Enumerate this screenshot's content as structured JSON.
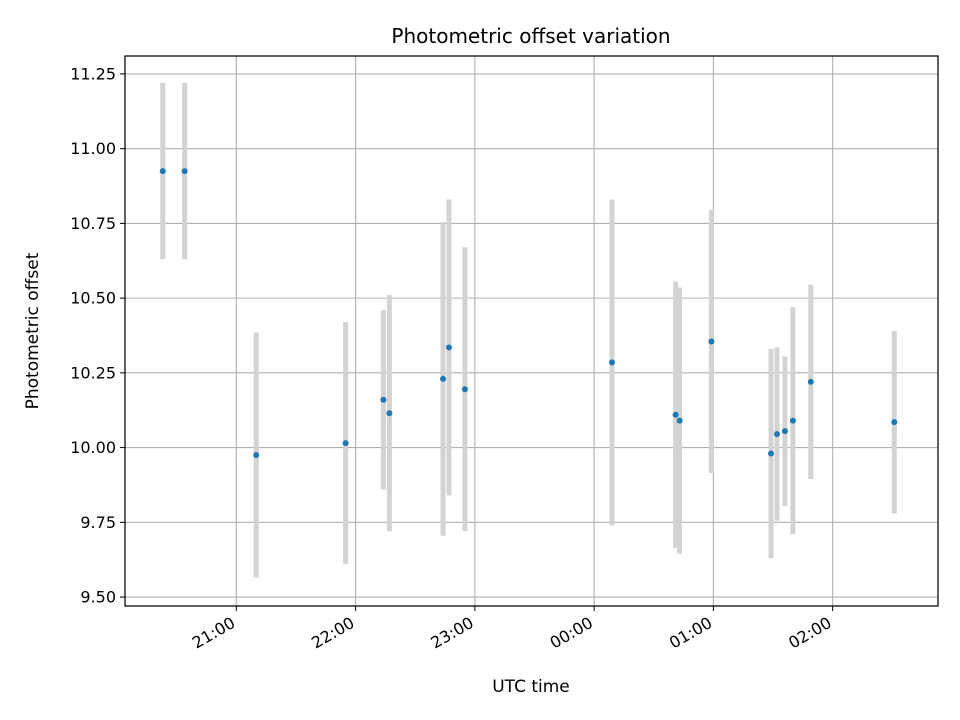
{
  "chart_data": {
    "type": "scatter",
    "title": "Photometric offset variation",
    "xlabel": "UTC time",
    "ylabel": "Photometric offset",
    "x_axis": {
      "type": "time",
      "range": [
        "2000-01-01T20:04:00",
        "2000-01-02T02:53:00"
      ],
      "ticks": [
        {
          "label": "21:00",
          "time": "2000-01-01T21:00:00"
        },
        {
          "label": "22:00",
          "time": "2000-01-01T22:00:00"
        },
        {
          "label": "23:00",
          "time": "2000-01-01T23:00:00"
        },
        {
          "label": "00:00",
          "time": "2000-01-02T00:00:00"
        },
        {
          "label": "01:00",
          "time": "2000-01-02T01:00:00"
        },
        {
          "label": "02:00",
          "time": "2000-01-02T02:00:00"
        }
      ]
    },
    "ylim": [
      9.47,
      11.31
    ],
    "y_ticks": [
      {
        "label": "9.50",
        "value": 9.5
      },
      {
        "label": "9.75",
        "value": 9.75
      },
      {
        "label": "10.00",
        "value": 10.0
      },
      {
        "label": "10.25",
        "value": 10.25
      },
      {
        "label": "10.50",
        "value": 10.5
      },
      {
        "label": "10.75",
        "value": 10.75
      },
      {
        "label": "11.00",
        "value": 11.0
      },
      {
        "label": "11.25",
        "value": 11.25
      }
    ],
    "grid": true,
    "colors": {
      "points": "#1f77b4",
      "error_bars": "#d3d3d3",
      "grid": "#b0b0b0"
    },
    "points": [
      {
        "time": "2000-01-01T20:23:00",
        "y": 10.925,
        "err": 0.295
      },
      {
        "time": "2000-01-01T20:34:00",
        "y": 10.925,
        "err": 0.295
      },
      {
        "time": "2000-01-01T21:10:00",
        "y": 9.975,
        "err": 0.41
      },
      {
        "time": "2000-01-01T21:55:00",
        "y": 10.015,
        "err": 0.405
      },
      {
        "time": "2000-01-01T22:14:00",
        "y": 10.16,
        "err": 0.3
      },
      {
        "time": "2000-01-01T22:17:00",
        "y": 10.115,
        "err": 0.395
      },
      {
        "time": "2000-01-01T22:44:00",
        "y": 10.23,
        "err": 0.525
      },
      {
        "time": "2000-01-01T22:47:00",
        "y": 10.335,
        "err": 0.495
      },
      {
        "time": "2000-01-01T22:55:00",
        "y": 10.195,
        "err": 0.475
      },
      {
        "time": "2000-01-02T00:09:00",
        "y": 10.285,
        "err": 0.545
      },
      {
        "time": "2000-01-02T00:41:00",
        "y": 10.11,
        "err": 0.445
      },
      {
        "time": "2000-01-02T00:43:00",
        "y": 10.09,
        "err": 0.445
      },
      {
        "time": "2000-01-02T00:59:00",
        "y": 10.355,
        "err": 0.44
      },
      {
        "time": "2000-01-02T01:29:00",
        "y": 9.98,
        "err": 0.35
      },
      {
        "time": "2000-01-02T01:32:00",
        "y": 10.045,
        "err": 0.29
      },
      {
        "time": "2000-01-02T01:36:00",
        "y": 10.055,
        "err": 0.25
      },
      {
        "time": "2000-01-02T01:40:00",
        "y": 10.09,
        "err": 0.38
      },
      {
        "time": "2000-01-02T01:49:00",
        "y": 10.22,
        "err": 0.325
      },
      {
        "time": "2000-01-02T02:31:00",
        "y": 10.085,
        "err": 0.305
      }
    ]
  }
}
